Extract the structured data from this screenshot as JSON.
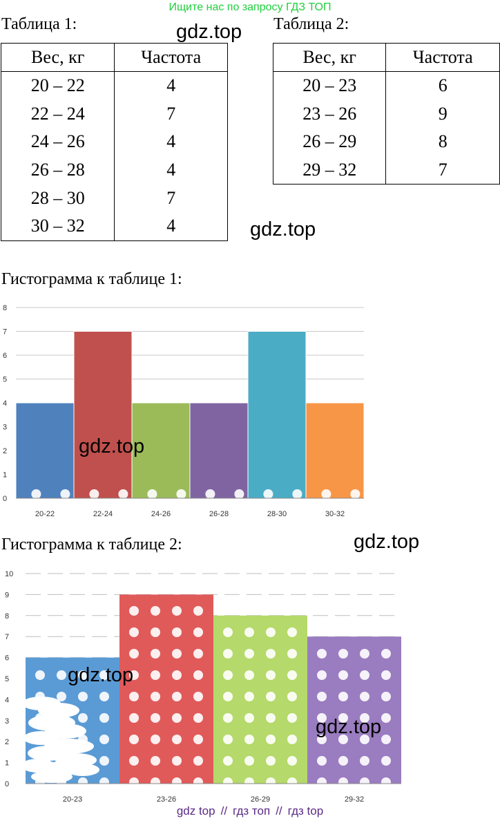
{
  "banner": "Ищите нас по запросу ГДЗ ТОП",
  "watermark": "gdz.top",
  "table1": {
    "caption": "Таблица 1:",
    "headers": [
      "Вес, кг",
      "Частота"
    ],
    "rows": [
      {
        "range": "20 – 22",
        "freq": "4"
      },
      {
        "range": "22 – 24",
        "freq": "7"
      },
      {
        "range": "24 – 26",
        "freq": "4"
      },
      {
        "range": "26 – 28",
        "freq": "4"
      },
      {
        "range": "28 – 30",
        "freq": "7"
      },
      {
        "range": "30 – 32",
        "freq": "4"
      }
    ]
  },
  "table2": {
    "caption": "Таблица 2:",
    "headers": [
      "Вес, кг",
      "Частота"
    ],
    "rows": [
      {
        "range": "20 – 23",
        "freq": "6"
      },
      {
        "range": "23 – 26",
        "freq": "9"
      },
      {
        "range": "26 – 29",
        "freq": "8"
      },
      {
        "range": "29 – 32",
        "freq": "7"
      }
    ]
  },
  "hist1_caption": "Гистограмма к таблице 1:",
  "hist2_caption": "Гистограмма к таблице 2:",
  "chart_data": [
    {
      "type": "bar",
      "title": "Гистограмма к таблице 1:",
      "categories": [
        "20-22",
        "22-24",
        "24-26",
        "26-28",
        "28-30",
        "30-32"
      ],
      "values": [
        4,
        7,
        4,
        4,
        7,
        4
      ],
      "colors": [
        "#4f81bd",
        "#c0504d",
        "#9bbb59",
        "#8064a2",
        "#4bacc6",
        "#f79646"
      ],
      "yticks": [
        "0",
        "1",
        "2",
        "3",
        "4",
        "5",
        "6",
        "7",
        "8"
      ],
      "ylim": [
        0,
        8
      ],
      "grid": true
    },
    {
      "type": "bar",
      "title": "Гистограмма к таблице 2:",
      "categories": [
        "20-23",
        "23-26",
        "26-29",
        "29-32"
      ],
      "values": [
        6,
        9,
        8,
        7
      ],
      "colors": [
        "#5b9bd5",
        "#e05a5a",
        "#b5d96a",
        "#9a7cc0"
      ],
      "yticks": [
        "0",
        "1",
        "2",
        "3",
        "4",
        "5",
        "6",
        "7",
        "8",
        "9",
        "10"
      ],
      "ylim": [
        0,
        10
      ],
      "grid": true
    }
  ],
  "footer": [
    "gdz top",
    "гдз топ",
    "гдз top"
  ],
  "footer_sep": "//"
}
